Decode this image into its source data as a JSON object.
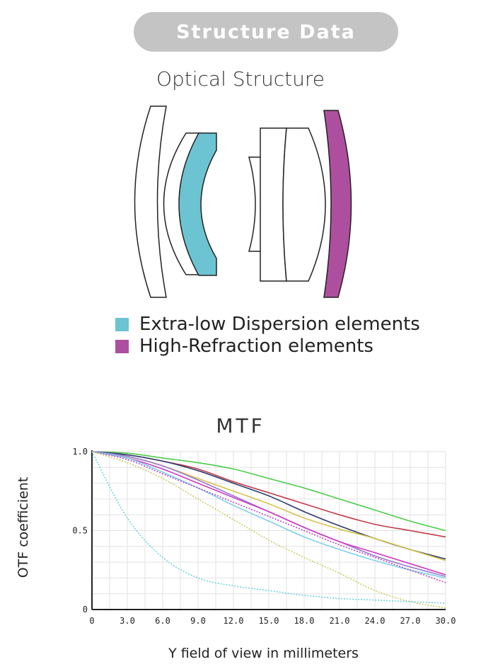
{
  "header": {
    "title": "Structure Data"
  },
  "optical": {
    "title": "Optical Structure",
    "colors": {
      "ed": "#6cc4d2",
      "hr": "#ad4f9e",
      "outline": "#222222"
    },
    "legend": [
      {
        "label": "Extra-low Dispersion elements",
        "color": "#6cc4d2"
      },
      {
        "label": "High-Refraction elements",
        "color": "#ad4f9e"
      }
    ]
  },
  "mtf": {
    "title": "MTF"
  },
  "chart_data": {
    "type": "line",
    "xlabel": "Y field of view in millimeters",
    "ylabel": "OTF coefficient",
    "xlim": [
      0,
      30
    ],
    "ylim": [
      0,
      1
    ],
    "x_ticks": [
      "0",
      "3.0",
      "6.0",
      "9.0",
      "12.0",
      "15.0",
      "18.0",
      "21.0",
      "24.0",
      "27.0",
      "30.0"
    ],
    "y_ticks": [
      "0",
      "0.5",
      "1.0"
    ],
    "grid": true,
    "x": [
      0,
      3,
      6,
      9,
      12,
      15,
      18,
      21,
      24,
      27,
      30
    ],
    "series": [
      {
        "color": "#4ccc4c",
        "dash": false,
        "values": [
          1.0,
          0.99,
          0.96,
          0.93,
          0.89,
          0.83,
          0.77,
          0.7,
          0.63,
          0.56,
          0.5
        ]
      },
      {
        "color": "#c23a4a",
        "dash": false,
        "values": [
          1.0,
          0.98,
          0.94,
          0.89,
          0.81,
          0.74,
          0.67,
          0.6,
          0.54,
          0.5,
          0.46
        ]
      },
      {
        "color": "#2c3a70",
        "dash": false,
        "values": [
          1.0,
          0.98,
          0.94,
          0.88,
          0.8,
          0.72,
          0.62,
          0.53,
          0.45,
          0.38,
          0.32
        ]
      },
      {
        "color": "#d7c24a",
        "dash": false,
        "values": [
          1.0,
          0.97,
          0.91,
          0.83,
          0.75,
          0.67,
          0.58,
          0.51,
          0.45,
          0.38,
          0.31
        ]
      },
      {
        "color": "#9a7ad0",
        "dash": false,
        "values": [
          1.0,
          0.97,
          0.91,
          0.82,
          0.72,
          0.62,
          0.52,
          0.43,
          0.34,
          0.27,
          0.21
        ]
      },
      {
        "color": "#d03ac2",
        "dash": false,
        "values": [
          1.0,
          0.96,
          0.89,
          0.8,
          0.71,
          0.62,
          0.52,
          0.43,
          0.36,
          0.29,
          0.22
        ]
      },
      {
        "color": "#7fd0e8",
        "dash": false,
        "values": [
          1.0,
          0.96,
          0.87,
          0.77,
          0.66,
          0.56,
          0.46,
          0.38,
          0.31,
          0.25,
          0.2
        ]
      },
      {
        "color": "#b846c8",
        "dash": true,
        "values": [
          1.0,
          0.95,
          0.86,
          0.77,
          0.68,
          0.59,
          0.5,
          0.41,
          0.33,
          0.25,
          0.17
        ]
      },
      {
        "color": "#cccc66",
        "dash": true,
        "values": [
          1.0,
          0.93,
          0.83,
          0.7,
          0.57,
          0.44,
          0.33,
          0.23,
          0.12,
          0.05,
          0.01
        ]
      },
      {
        "color": "#6fd4e0",
        "dash": true,
        "values": [
          1.0,
          0.58,
          0.33,
          0.2,
          0.15,
          0.12,
          0.09,
          0.07,
          0.06,
          0.05,
          0.04
        ]
      }
    ]
  }
}
